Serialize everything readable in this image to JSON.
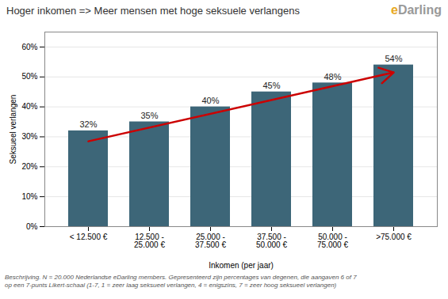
{
  "chart_data": {
    "type": "bar",
    "title": "Hoger inkomen => Meer mensen met hoge seksuele verlangens",
    "xlabel": "Inkomen (per jaar)",
    "ylabel": "Seksueel verlangen",
    "categories": [
      "< 12.500 €",
      "12.500 -\n25.000 €",
      "25.000 -\n37.500 €",
      "37.500 -\n50.000 €",
      "50.000 -\n75.000 €",
      ">75.000 €"
    ],
    "values": [
      0.32,
      0.35,
      0.4,
      0.45,
      0.48,
      0.54
    ],
    "value_labels": [
      "32%",
      "35%",
      "40%",
      "45%",
      "48%",
      "54%"
    ],
    "color": "#3d6678",
    "ylim": [
      0,
      0.65
    ],
    "yticks": [
      {
        "value": 0.0,
        "label": "0%"
      },
      {
        "value": 0.1,
        "label": "10%"
      },
      {
        "value": 0.2,
        "label": "20%"
      },
      {
        "value": 0.3,
        "label": "30%"
      },
      {
        "value": 0.4,
        "label": "40%"
      },
      {
        "value": 0.5,
        "label": "50%"
      },
      {
        "value": 0.6,
        "label": "60%"
      }
    ],
    "grid": true,
    "data_labels": true,
    "annotations": [
      {
        "type": "arrow",
        "x_start": "< 12.500 €",
        "y_start": 0.285,
        "x_end": ">75.000 €",
        "y_end": 0.515,
        "color": "#cc0000"
      }
    ],
    "logo": [
      {
        "text": "e",
        "color": "#e8a820"
      },
      {
        "text": "Darling",
        "color": "#999999"
      }
    ],
    "caption": "Beschrijving. N = 20.000 Nederlandse eDarling members. Gepresenteerd zijn percentages van degenen, die aangaven 6 of 7\nop een 7-punts Likert-schaal (1-7, 1 = zeer laag seksueel verlangen, 4 = enigszins, 7 = zeer hoog seksueel verlangen)"
  }
}
